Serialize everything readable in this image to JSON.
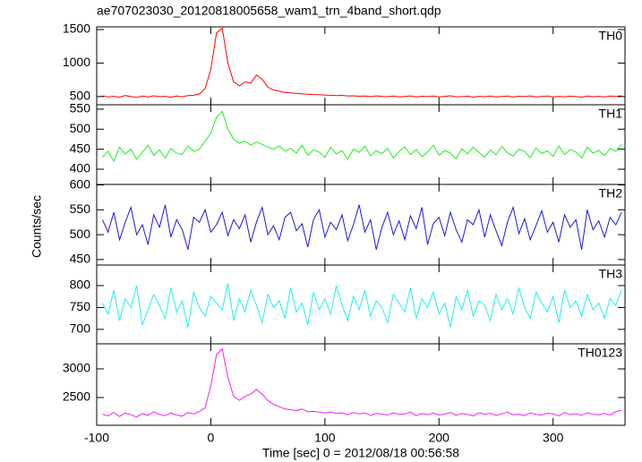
{
  "chart_data": {
    "type": "line",
    "title": "ae707023030_20120818005658_wam1_trn_4band_short.qdp",
    "x_label": "Time [sec] 0 = 2012/08/18 00:56:58",
    "y_label": "Counts/sec",
    "xlim": [
      -100,
      363
    ],
    "xticks": [
      -100,
      0,
      100,
      200,
      300
    ],
    "x": [
      -95,
      -90,
      -85,
      -80,
      -75,
      -70,
      -65,
      -60,
      -55,
      -50,
      -45,
      -40,
      -35,
      -30,
      -25,
      -20,
      -15,
      -10,
      -5,
      0,
      5,
      10,
      15,
      20,
      25,
      30,
      35,
      40,
      45,
      50,
      55,
      60,
      65,
      70,
      75,
      80,
      85,
      90,
      95,
      100,
      105,
      110,
      115,
      120,
      125,
      130,
      135,
      140,
      145,
      150,
      155,
      160,
      165,
      170,
      175,
      180,
      185,
      190,
      195,
      200,
      205,
      210,
      215,
      220,
      225,
      230,
      235,
      240,
      245,
      250,
      255,
      260,
      265,
      270,
      275,
      280,
      285,
      290,
      295,
      300,
      305,
      310,
      315,
      320,
      325,
      330,
      335,
      340,
      345,
      350,
      355,
      360
    ],
    "panels": [
      {
        "name": "TH0",
        "color": "#ff0000",
        "ylim": [
          378,
          1540
        ],
        "yticks": [
          500,
          1000,
          1500
        ],
        "values": [
          510,
          495,
          505,
          490,
          515,
          500,
          488,
          507,
          495,
          512,
          498,
          503,
          490,
          509,
          497,
          515,
          520,
          540,
          620,
          900,
          1450,
          1520,
          1000,
          720,
          660,
          720,
          700,
          820,
          760,
          640,
          600,
          580,
          560,
          555,
          548,
          540,
          535,
          530,
          528,
          522,
          520,
          515,
          518,
          510,
          512,
          505,
          508,
          500,
          510,
          503,
          498,
          507,
          495,
          502,
          510,
          496,
          505,
          499,
          508,
          494,
          503,
          511,
          497,
          500,
          506,
          492,
          504,
          498,
          509,
          495,
          501,
          507,
          493,
          505,
          499,
          510,
          496,
          502,
          508,
          494,
          503,
          497,
          506,
          500,
          492,
          509,
          498,
          504,
          495,
          507,
          501,
          512
        ]
      },
      {
        "name": "TH1",
        "color": "#22ee22",
        "ylim": [
          362,
          561
        ],
        "yticks": [
          400,
          450,
          500,
          550
        ],
        "values": [
          430,
          445,
          420,
          455,
          438,
          450,
          425,
          442,
          460,
          435,
          448,
          428,
          452,
          440,
          437,
          458,
          445,
          450,
          470,
          490,
          530,
          545,
          500,
          475,
          465,
          470,
          460,
          468,
          462,
          455,
          450,
          458,
          445,
          452,
          440,
          460,
          435,
          448,
          443,
          430,
          455,
          438,
          447,
          425,
          450,
          442,
          458,
          433,
          446,
          439,
          452,
          428,
          444,
          456,
          437,
          449,
          431,
          443,
          460,
          435,
          447,
          440,
          426,
          451,
          438,
          455,
          442,
          430,
          448,
          436,
          457,
          441,
          433,
          450,
          444,
          429,
          453,
          439,
          446,
          432,
          458,
          437,
          449,
          443,
          428,
          455,
          440,
          447,
          434,
          452,
          445,
          462
        ]
      },
      {
        "name": "TH2",
        "color": "#1a1ad8",
        "ylim": [
          439,
          601
        ],
        "yticks": [
          450,
          500,
          550,
          600
        ],
        "values": [
          530,
          505,
          545,
          490,
          525,
          555,
          500,
          520,
          480,
          540,
          515,
          560,
          495,
          530,
          510,
          470,
          535,
          525,
          550,
          505,
          520,
          545,
          498,
          530,
          512,
          540,
          485,
          525,
          555,
          500,
          518,
          490,
          535,
          545,
          508,
          522,
          475,
          530,
          550,
          495,
          525,
          510,
          540,
          488,
          520,
          560,
          505,
          530,
          470,
          515,
          545,
          500,
          528,
          490,
          538,
          512,
          555,
          480,
          522,
          535,
          498,
          545,
          510,
          485,
          530,
          520,
          550,
          495,
          540,
          508,
          478,
          525,
          555,
          502,
          532,
          490,
          518,
          548,
          505,
          525,
          485,
          540,
          515,
          530,
          470,
          550,
          510,
          528,
          495,
          535,
          520,
          545
        ]
      },
      {
        "name": "TH3",
        "color": "#22eeee",
        "ylim": [
          667,
          847
        ],
        "yticks": [
          700,
          750,
          800
        ],
        "values": [
          760,
          735,
          790,
          720,
          770,
          750,
          800,
          710,
          745,
          780,
          755,
          725,
          795,
          740,
          765,
          705,
          785,
          750,
          730,
          775,
          760,
          745,
          805,
          720,
          770,
          740,
          790,
          755,
          715,
          780,
          750,
          765,
          725,
          795,
          740,
          760,
          710,
          785,
          745,
          770,
          735,
          800,
          755,
          720,
          775,
          745,
          790,
          730,
          765,
          750,
          715,
          780,
          760,
          740,
          795,
          725,
          770,
          750,
          785,
          735,
          760,
          705,
          775,
          745,
          790,
          730,
          765,
          755,
          720,
          780,
          745,
          770,
          735,
          795,
          750,
          725,
          785,
          760,
          740,
          775,
          715,
          790,
          750,
          765,
          730,
          780,
          745,
          760,
          725,
          770,
          755,
          790
        ]
      },
      {
        "name": "TH0123",
        "color": "#ee22ee",
        "ylim": [
          2016,
          3437
        ],
        "yticks": [
          2500,
          3000
        ],
        "values": [
          2210,
          2180,
          2240,
          2170,
          2230,
          2200,
          2160,
          2220,
          2190,
          2250,
          2205,
          2185,
          2230,
          2195,
          2175,
          2240,
          2215,
          2260,
          2320,
          2700,
          3250,
          3350,
          2850,
          2520,
          2450,
          2520,
          2560,
          2640,
          2560,
          2450,
          2380,
          2340,
          2300,
          2290,
          2270,
          2300,
          2250,
          2260,
          2245,
          2230,
          2250,
          2220,
          2235,
          2200,
          2240,
          2215,
          2230,
          2190,
          2225,
          2210,
          2195,
          2235,
          2205,
          2215,
          2245,
          2185,
          2220,
          2200,
          2230,
          2195,
          2210,
          2240,
          2190,
          2220,
          2205,
          2180,
          2235,
          2210,
          2225,
          2190,
          2215,
          2245,
          2200,
          2210,
          2185,
          2230,
          2205,
          2195,
          2225,
          2215,
          2180,
          2240,
          2200,
          2220,
          2190,
          2235,
          2210,
          2200,
          2225,
          2195,
          2250,
          2280
        ]
      }
    ]
  }
}
